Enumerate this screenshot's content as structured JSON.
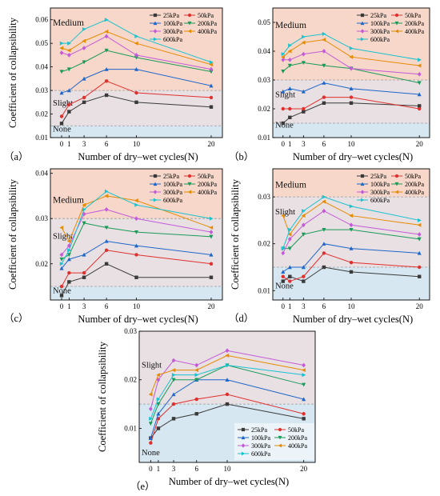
{
  "colors": {
    "zone_medium": "#f6d7c9",
    "zone_slight": "#e9e0e3",
    "zone_none": "#d7e7f1",
    "threshold_line": "#9a9a9a"
  },
  "series_styles": [
    {
      "color": "#3a3a3a",
      "marker": "square"
    },
    {
      "color": "#e0302e",
      "marker": "circle"
    },
    {
      "color": "#1f66c9",
      "marker": "triangle-up"
    },
    {
      "color": "#1a9a58",
      "marker": "triangle-down"
    },
    {
      "color": "#c45ad8",
      "marker": "diamond"
    },
    {
      "color": "#e68a00",
      "marker": "triangle-left"
    },
    {
      "color": "#19c2cf",
      "marker": "triangle-right"
    }
  ],
  "chart_data": [
    {
      "type": "line",
      "panel_label": "（a）",
      "xlabel": "Number of dry–wet cycles(N)",
      "ylabel": "Coefficient of collapsibility",
      "x": [
        0,
        1,
        3,
        6,
        10,
        20
      ],
      "xticks": [
        "0",
        "1",
        "3",
        "6",
        "10",
        "20"
      ],
      "xlim": [
        -1.5,
        21.5
      ],
      "ylim": [
        0.01,
        0.065
      ],
      "yticks": [
        "0.01",
        "0.02",
        "0.03",
        "0.04",
        "0.05",
        "0.06"
      ],
      "thresholds": [
        0.015,
        0.03
      ],
      "zones": [
        {
          "label": "Medium",
          "y": 0.0575
        },
        {
          "label": "Slight",
          "y": 0.0235
        },
        {
          "label": "None",
          "y": 0.0125
        }
      ],
      "legend": {
        "placement": "top-right",
        "columns": 2
      },
      "series": [
        {
          "name": "25kPa",
          "values": [
            0.016,
            0.021,
            0.025,
            0.028,
            0.025,
            0.023
          ]
        },
        {
          "name": "50kPa",
          "values": [
            0.019,
            0.024,
            0.027,
            0.034,
            0.029,
            0.027
          ]
        },
        {
          "name": "100kPa",
          "values": [
            0.029,
            0.03,
            0.035,
            0.039,
            0.039,
            0.032
          ]
        },
        {
          "name": "200kPa",
          "values": [
            0.038,
            0.039,
            0.042,
            0.047,
            0.044,
            0.038
          ]
        },
        {
          "name": "300kPa",
          "values": [
            0.046,
            0.045,
            0.048,
            0.053,
            0.045,
            0.039
          ]
        },
        {
          "name": "400kPa",
          "values": [
            0.048,
            0.047,
            0.051,
            0.055,
            0.05,
            0.041
          ]
        },
        {
          "name": "600kPa",
          "values": [
            0.05,
            0.05,
            0.056,
            0.06,
            0.053,
            0.042
          ]
        }
      ]
    },
    {
      "type": "line",
      "panel_label": "（b）",
      "xlabel": "Number of dry–wet cycles(N)",
      "ylabel": "",
      "x": [
        0,
        1,
        3,
        6,
        10,
        20
      ],
      "xticks": [
        "0",
        "1",
        "3",
        "6",
        "10",
        "20"
      ],
      "xlim": [
        -1.5,
        21.5
      ],
      "ylim": [
        0.01,
        0.055
      ],
      "yticks": [
        "0.01",
        "0.02",
        "0.03",
        "0.04",
        "0.05"
      ],
      "thresholds": [
        0.015,
        0.03
      ],
      "zones": [
        {
          "label": "Medium",
          "y": 0.048
        },
        {
          "label": "Slight",
          "y": 0.024
        },
        {
          "label": "None",
          "y": 0.0135
        }
      ],
      "legend": {
        "placement": "top-right",
        "columns": 2
      },
      "series": [
        {
          "name": "25kPa",
          "values": [
            0.015,
            0.017,
            0.019,
            0.022,
            0.022,
            0.021
          ]
        },
        {
          "name": "50kPa",
          "values": [
            0.02,
            0.02,
            0.02,
            0.024,
            0.024,
            0.02
          ]
        },
        {
          "name": "100kPa",
          "values": [
            0.026,
            0.027,
            0.026,
            0.029,
            0.027,
            0.025
          ]
        },
        {
          "name": "200kPa",
          "values": [
            0.033,
            0.035,
            0.036,
            0.035,
            0.034,
            0.029
          ]
        },
        {
          "name": "300kPa",
          "values": [
            0.037,
            0.037,
            0.039,
            0.04,
            0.034,
            0.032
          ]
        },
        {
          "name": "400kPa",
          "values": [
            0.038,
            0.04,
            0.043,
            0.044,
            0.038,
            0.035
          ]
        },
        {
          "name": "600kPa",
          "values": [
            0.039,
            0.042,
            0.045,
            0.046,
            0.041,
            0.037
          ]
        }
      ]
    },
    {
      "type": "line",
      "panel_label": "（c）",
      "xlabel": "Number of dry–wet cycles(N)",
      "ylabel": "Coefficient of collapsibility",
      "x": [
        0,
        1,
        3,
        6,
        10,
        20
      ],
      "xticks": [
        "0",
        "1",
        "3",
        "6",
        "10",
        "20"
      ],
      "xlim": [
        -1.5,
        21.5
      ],
      "ylim": [
        0.012,
        0.041
      ],
      "yticks": [
        "0.02",
        "0.03",
        "0.04"
      ],
      "thresholds": [
        0.015,
        0.03
      ],
      "zones": [
        {
          "label": "Medium",
          "y": 0.0335
        },
        {
          "label": "Slight",
          "y": 0.0255
        },
        {
          "label": "None",
          "y": 0.0135
        }
      ],
      "legend": {
        "placement": "top-right",
        "columns": 2
      },
      "series": [
        {
          "name": "25kPa",
          "values": [
            0.013,
            0.016,
            0.017,
            0.02,
            0.017,
            0.017
          ]
        },
        {
          "name": "50kPa",
          "values": [
            0.015,
            0.018,
            0.018,
            0.023,
            0.022,
            0.02
          ]
        },
        {
          "name": "100kPa",
          "values": [
            0.019,
            0.021,
            0.022,
            0.025,
            0.024,
            0.022
          ]
        },
        {
          "name": "200kPa",
          "values": [
            0.021,
            0.022,
            0.029,
            0.028,
            0.027,
            0.026
          ]
        },
        {
          "name": "300kPa",
          "values": [
            0.022,
            0.024,
            0.031,
            0.032,
            0.03,
            0.027
          ]
        },
        {
          "name": "400kPa",
          "values": [
            0.028,
            0.025,
            0.033,
            0.035,
            0.034,
            0.028
          ]
        },
        {
          "name": "600kPa",
          "values": [
            0.02,
            0.023,
            0.032,
            0.036,
            0.033,
            0.03
          ]
        }
      ]
    },
    {
      "type": "line",
      "panel_label": "（d）",
      "xlabel": "Number of dry–wet cycles(N)",
      "ylabel": "Coefficient of collapsibility",
      "x": [
        0,
        1,
        3,
        6,
        10,
        20
      ],
      "xticks": [
        "0",
        "1",
        "3",
        "6",
        "10",
        "20"
      ],
      "xlim": [
        -1.5,
        21.5
      ],
      "ylim": [
        0.008,
        0.036
      ],
      "yticks": [
        "0.01",
        "0.02",
        "0.03"
      ],
      "thresholds": [
        0.015,
        0.03
      ],
      "zones": [
        {
          "label": "Medium",
          "y": 0.032
        },
        {
          "label": "Slight",
          "y": 0.0263
        },
        {
          "label": "None",
          "y": 0.0105
        }
      ],
      "legend": {
        "placement": "top-right",
        "columns": 2
      },
      "series": [
        {
          "name": "25kPa",
          "values": [
            0.012,
            0.013,
            0.012,
            0.015,
            0.014,
            0.013
          ]
        },
        {
          "name": "50kPa",
          "values": [
            0.013,
            0.012,
            0.013,
            0.018,
            0.016,
            0.015
          ]
        },
        {
          "name": "100kPa",
          "values": [
            0.014,
            0.015,
            0.015,
            0.02,
            0.019,
            0.018
          ]
        },
        {
          "name": "200kPa",
          "values": [
            0.019,
            0.019,
            0.022,
            0.023,
            0.023,
            0.021
          ]
        },
        {
          "name": "300kPa",
          "values": [
            0.018,
            0.021,
            0.024,
            0.027,
            0.024,
            0.022
          ]
        },
        {
          "name": "400kPa",
          "values": [
            0.026,
            0.022,
            0.026,
            0.029,
            0.026,
            0.024
          ]
        },
        {
          "name": "600kPa",
          "values": [
            0.019,
            0.023,
            0.027,
            0.03,
            0.028,
            0.025
          ]
        }
      ]
    },
    {
      "type": "line",
      "panel_label": "（e）",
      "xlabel": "Number of dry–wet cycles(N)",
      "ylabel": "Coefficient of collapsibility",
      "x": [
        0,
        1,
        3,
        6,
        10,
        20
      ],
      "xticks": [
        "0",
        "1",
        "3",
        "6",
        "10",
        "20"
      ],
      "xlim": [
        -1.5,
        21.5
      ],
      "ylim": [
        0.003,
        0.03
      ],
      "yticks": [
        "0.01",
        "0.02",
        "0.03"
      ],
      "thresholds": [
        0.015
      ],
      "zones": [
        {
          "label": "Slight",
          "y": 0.0225
        },
        {
          "label": "None",
          "y": 0.0045
        }
      ],
      "legend": {
        "placement": "bottom-right",
        "columns": 2
      },
      "series": [
        {
          "name": "25kPa",
          "values": [
            0.008,
            0.01,
            0.012,
            0.013,
            0.015,
            0.012
          ]
        },
        {
          "name": "50kPa",
          "values": [
            0.007,
            0.012,
            0.015,
            0.016,
            0.017,
            0.013
          ]
        },
        {
          "name": "100kPa",
          "values": [
            0.008,
            0.013,
            0.017,
            0.02,
            0.02,
            0.016
          ]
        },
        {
          "name": "200kPa",
          "values": [
            0.011,
            0.015,
            0.02,
            0.02,
            0.023,
            0.019
          ]
        },
        {
          "name": "300kPa",
          "values": [
            0.014,
            0.02,
            0.024,
            0.023,
            0.026,
            0.023
          ]
        },
        {
          "name": "400kPa",
          "values": [
            0.017,
            0.021,
            0.022,
            0.022,
            0.025,
            0.022
          ]
        },
        {
          "name": "600kPa",
          "values": [
            0.012,
            0.016,
            0.021,
            0.021,
            0.023,
            0.021
          ]
        }
      ]
    }
  ]
}
